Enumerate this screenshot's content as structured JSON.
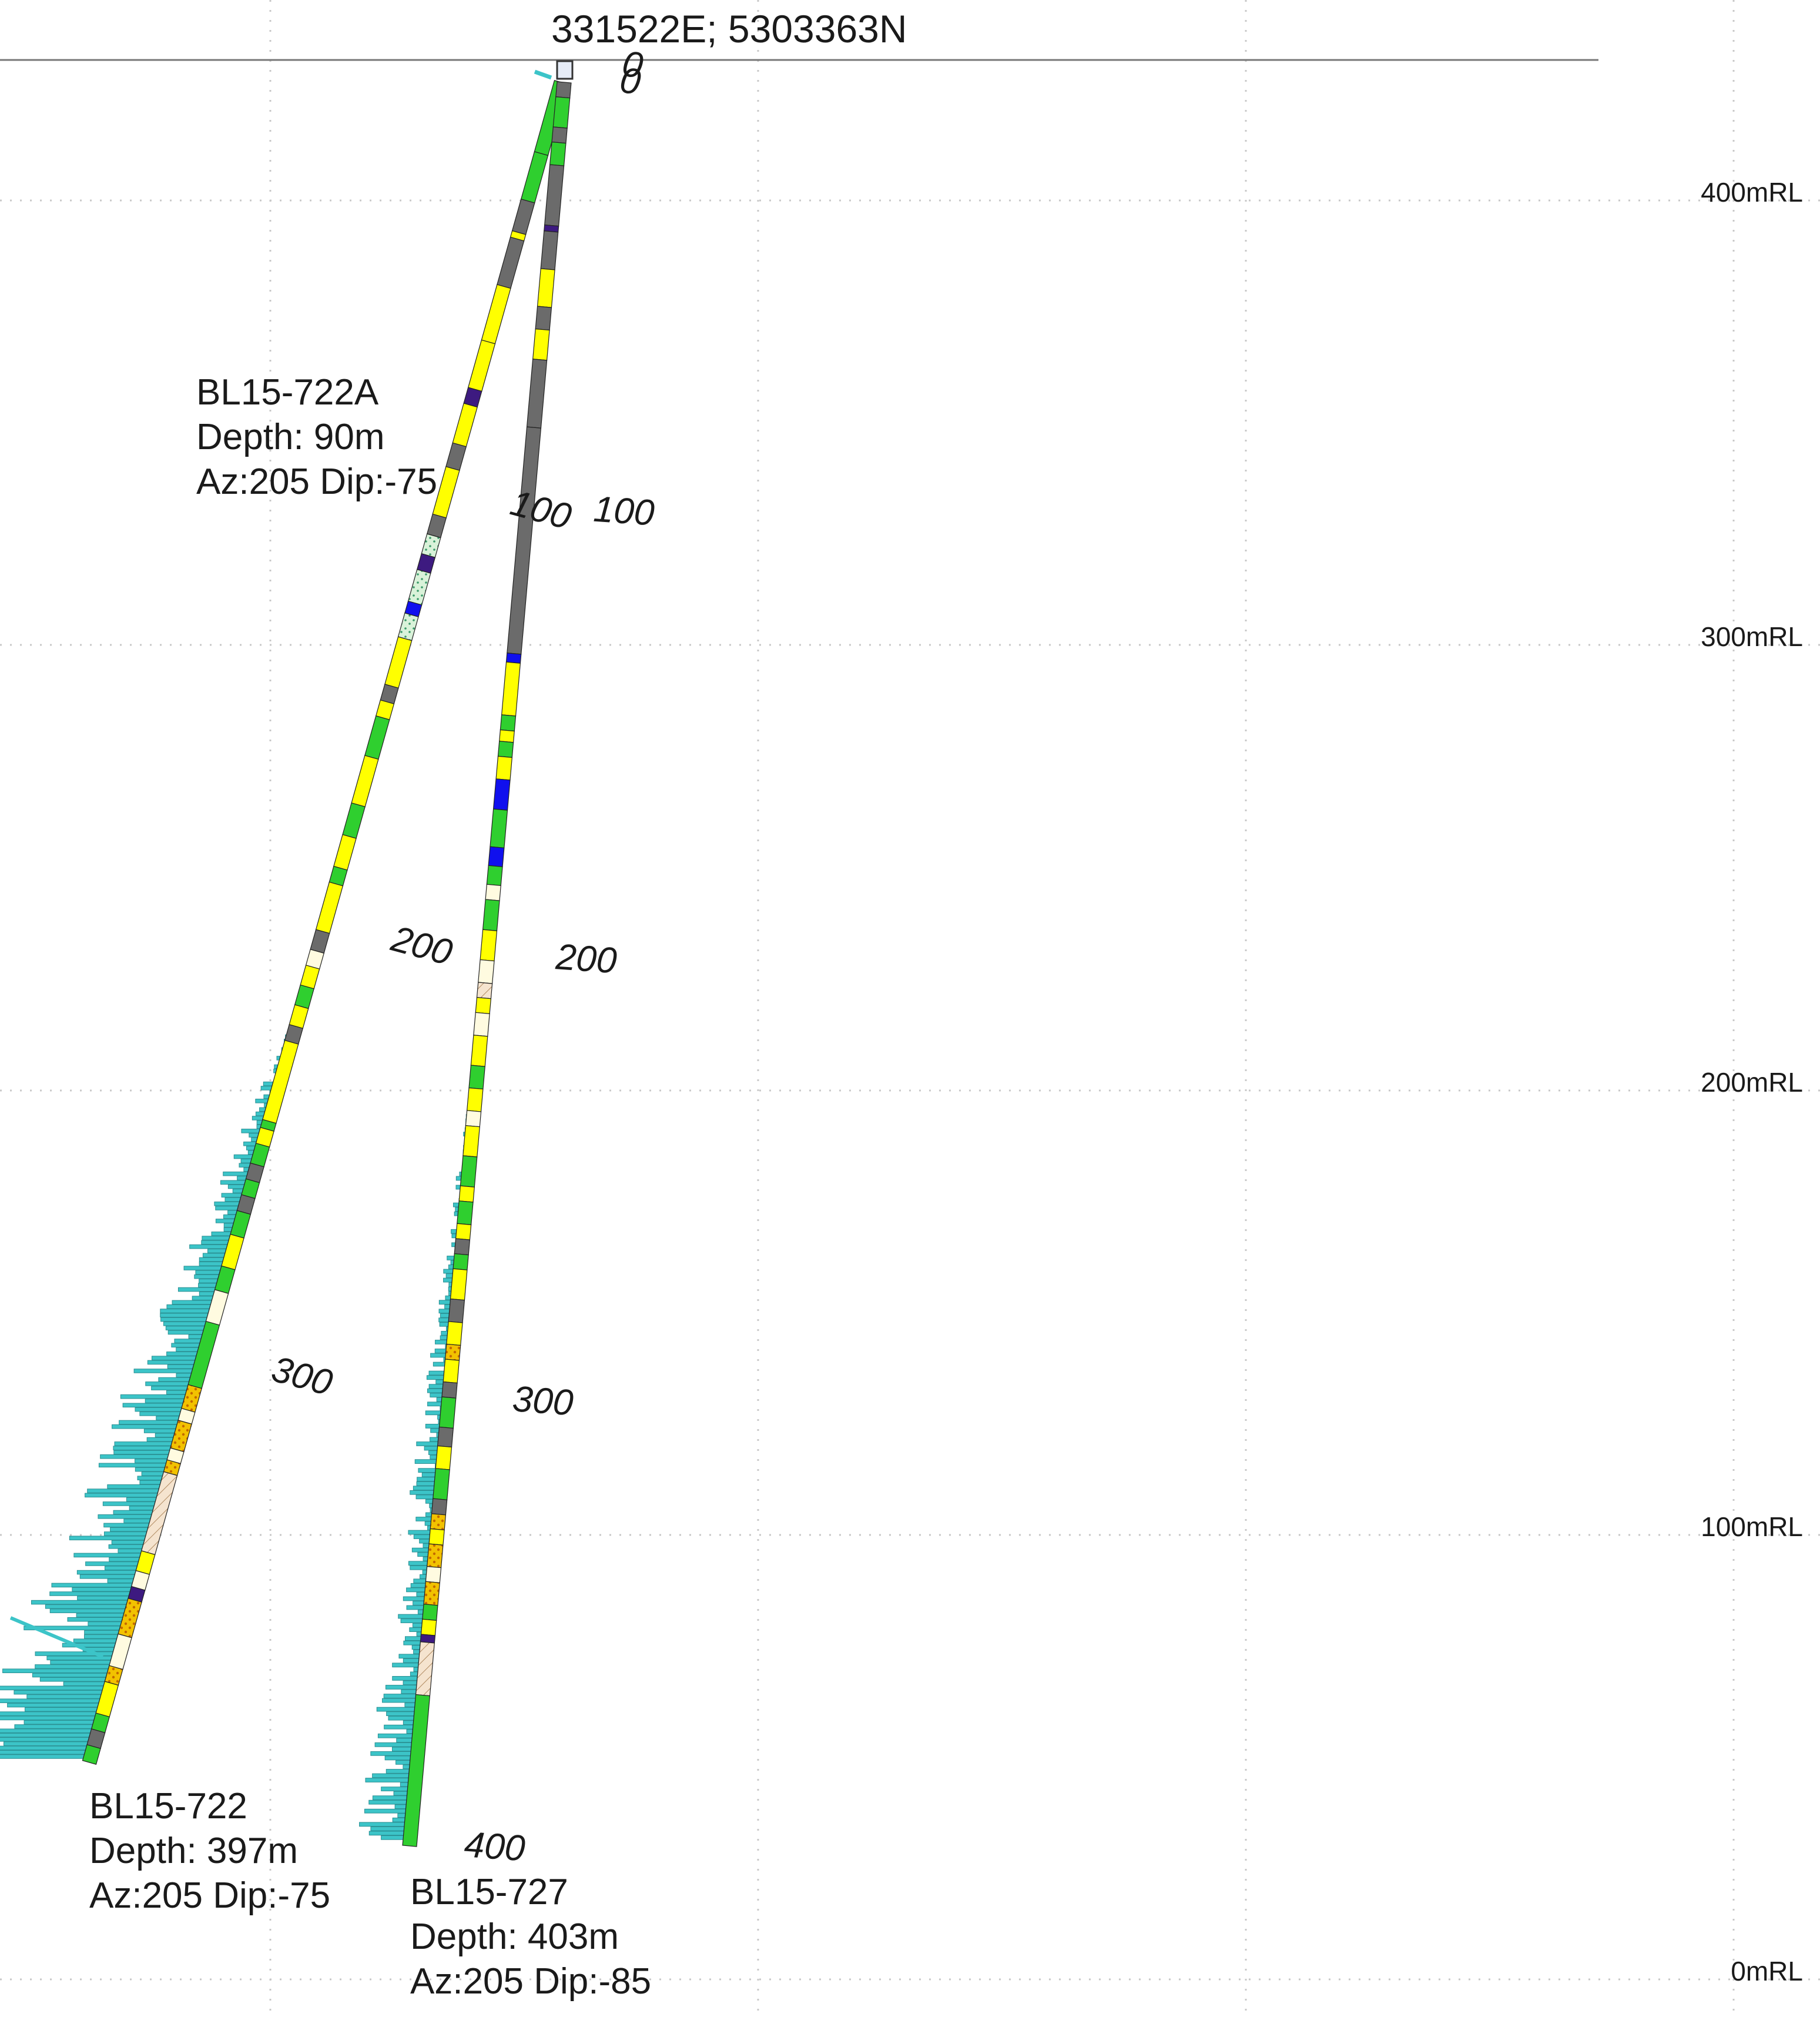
{
  "collar": {
    "coordinates": "331522E; 5303363N"
  },
  "rl_labels": [
    "400mRL",
    "300mRL",
    "200mRL",
    "100mRL",
    "0mRL"
  ],
  "legend_colors": {
    "green": "#2fcf2f",
    "yellow": "#ffff00",
    "grey": "#6b6b6b",
    "blue": "#1010ee",
    "purple": "#3d1a80",
    "mint": "#d9f2d9",
    "peach": "#f5e4cf",
    "orange_dotted": "#f2c200",
    "assay_bars": "#3cc4c8"
  },
  "holes": [
    {
      "id": "BL15-722A",
      "name": "BL15-722A",
      "depth": "Depth: 90m",
      "orientation": "Az:205 Dip:-75",
      "depth_marks": [
        "0",
        "100",
        "200",
        "300"
      ]
    },
    {
      "id": "BL15-722",
      "name": "BL15-722",
      "depth": "Depth: 397m",
      "orientation": "Az:205 Dip:-75"
    },
    {
      "id": "BL15-727",
      "name": "BL15-727",
      "depth": "Depth: 403m",
      "orientation": "Az:205 Dip:-85",
      "depth_marks": [
        "0",
        "100",
        "200",
        "300",
        "400"
      ]
    }
  ]
}
